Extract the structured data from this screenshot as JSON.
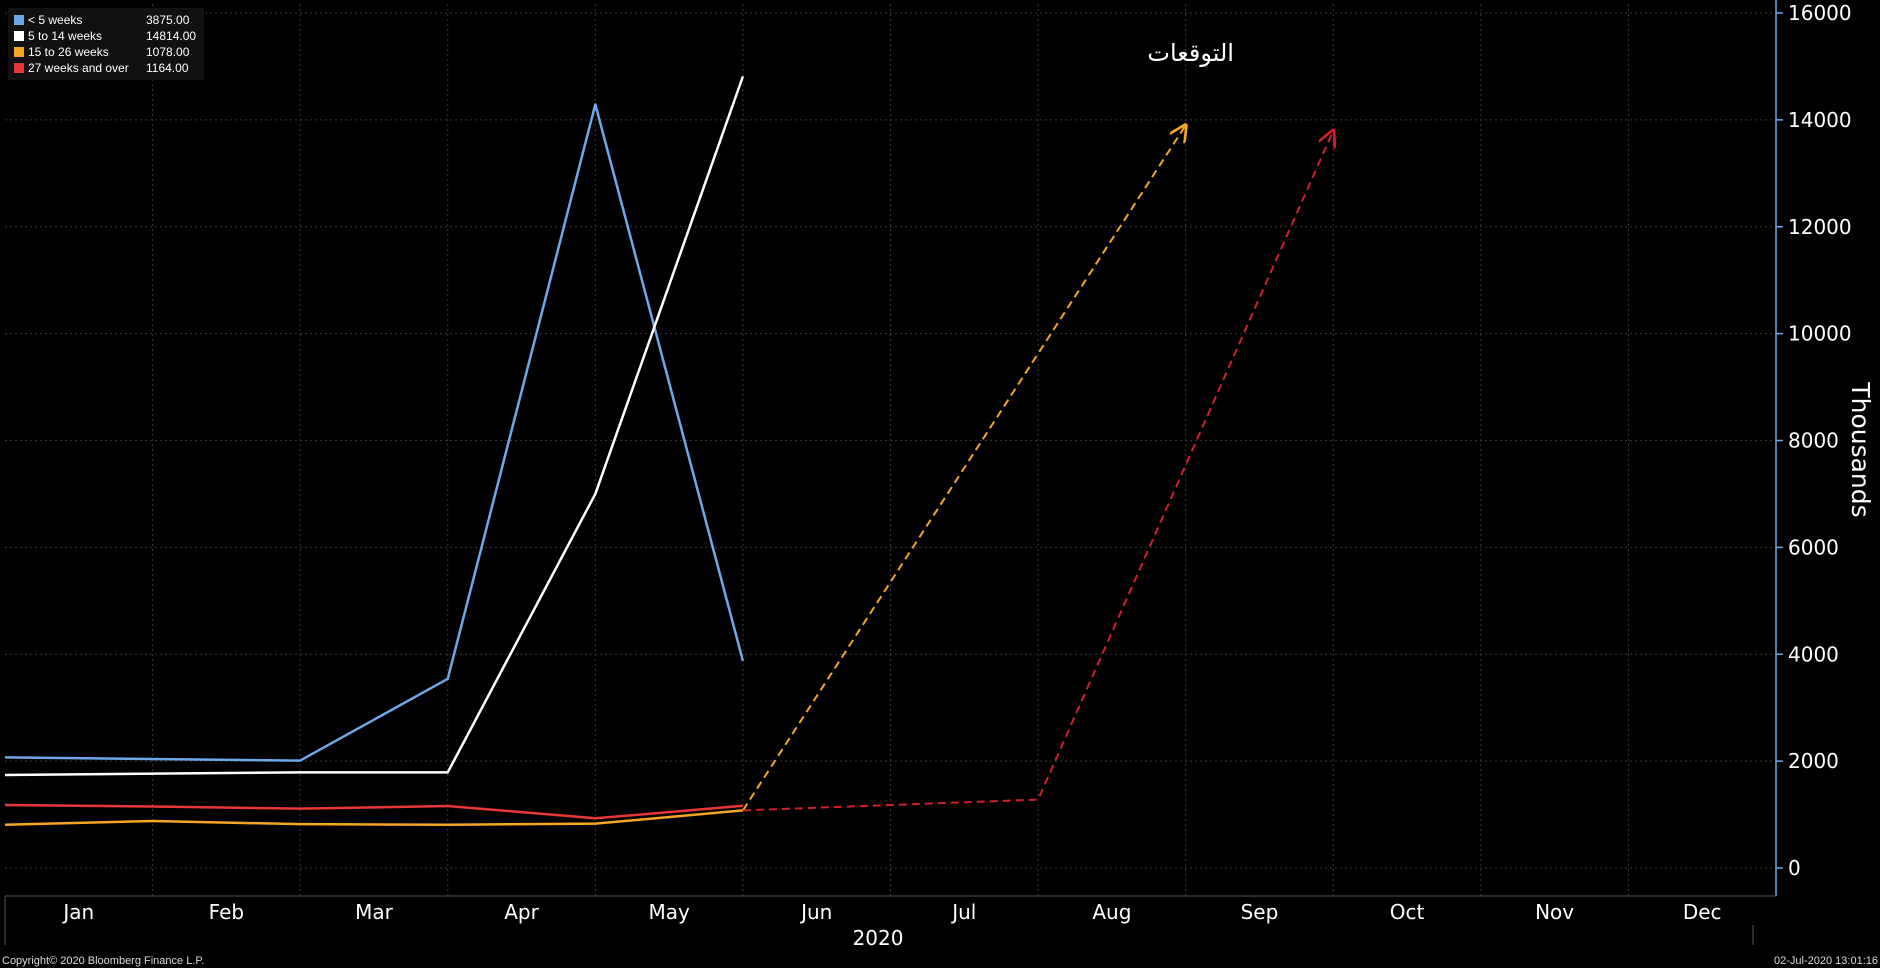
{
  "chart_data": {
    "type": "line",
    "ylabel": "Thousands",
    "xlabel": "2020",
    "ylim": [
      0,
      16000
    ],
    "yticks": [
      0,
      2000,
      4000,
      6000,
      8000,
      10000,
      12000,
      14000,
      16000
    ],
    "months": [
      "Jan",
      "Feb",
      "Mar",
      "Apr",
      "May",
      "Jun",
      "Jul",
      "Aug",
      "Sep",
      "Oct",
      "Nov",
      "Dec"
    ],
    "grid": true,
    "legend_position": "top-left",
    "series": [
      {
        "name": "< 5 weeks",
        "legend_value": "3875.00",
        "color": "#6fa8e8",
        "x": [
          0,
          2,
          3,
          4,
          5
        ],
        "values": [
          2070,
          2010,
          3540,
          14290,
          3875
        ]
      },
      {
        "name": "5 to 14 weeks",
        "legend_value": "14814.00",
        "color": "#ffffff",
        "x": [
          0,
          2,
          3,
          4,
          5
        ],
        "values": [
          1740,
          1790,
          1790,
          7000,
          14814
        ]
      },
      {
        "name": "15 to 26 weeks",
        "legend_value": "1078.00",
        "color": "#f5a623",
        "x": [
          0,
          1,
          2,
          3,
          4,
          5
        ],
        "values": [
          810,
          880,
          820,
          810,
          830,
          1078
        ]
      },
      {
        "name": "27 weeks and over",
        "legend_value": "1164.00",
        "color": "#e8373a",
        "x": [
          0,
          1,
          2,
          3,
          4,
          5
        ],
        "values": [
          1180,
          1150,
          1110,
          1160,
          930,
          1164
        ]
      }
    ],
    "forecast_lines": [
      {
        "color": "#f5a623",
        "x": [
          5,
          8
        ],
        "values": [
          1078,
          13900
        ]
      },
      {
        "color": "#d0202a",
        "x": [
          5,
          7,
          9
        ],
        "values": [
          1078,
          1280,
          13800
        ]
      }
    ],
    "annotation": {
      "text": "التوقعات",
      "x": 8,
      "y": 15100
    }
  },
  "footer": {
    "copyright": "Copyright© 2020 Bloomberg Finance L.P.",
    "timestamp": "02-Jul-2020 13:01:16"
  }
}
